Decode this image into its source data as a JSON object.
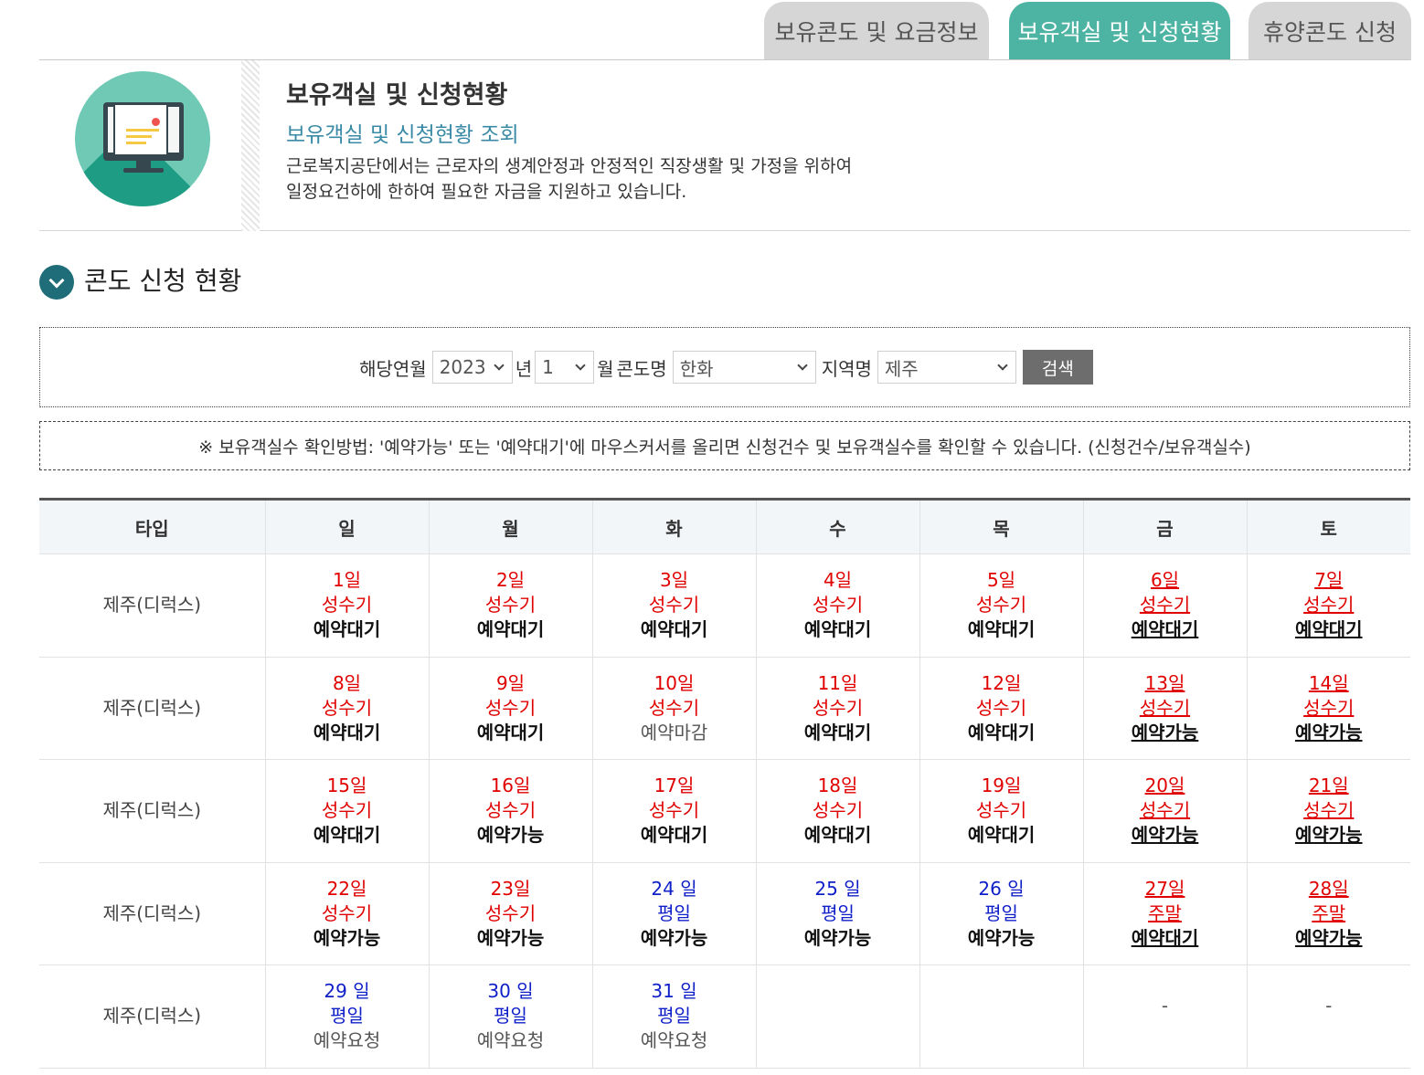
{
  "tabs": [
    {
      "label": "보유콘도 및 요금정보",
      "active": false
    },
    {
      "label": "보유객실 및 신청현황",
      "active": true
    },
    {
      "label": "휴양콘도 신청",
      "active": false
    }
  ],
  "intro": {
    "icon": "computer-document-icon",
    "title": "보유객실 및 신청현황",
    "subtitle": "보유객실 및 신청현황 조회",
    "desc_line1": "근로복지공단에서는 근로자의 생계안정과 안정적인 직장생활 및 가정을 위하여",
    "desc_line2": "일정요건하에 한하여 필요한 자금을 지원하고 있습니다."
  },
  "section": {
    "title": "콘도 신청 현황",
    "icon": "chevron-down-icon"
  },
  "search": {
    "year_label": "해당연월",
    "year": "2023",
    "year_unit": "년",
    "month": "1",
    "month_unit": "월",
    "condo_label": "콘도명",
    "condo": "한화",
    "region_label": "지역명",
    "region": "제주",
    "button": "검색"
  },
  "notice": "※ 보유객실수 확인방법: '예약가능' 또는 '예약대기'에 마우스커서를 올리면 신청건수 및 보유객실수를 확인할 수 있습니다. (신청건수/보유객실수)",
  "colors": {
    "tab_active": "#4db3a3",
    "red": "#e00000",
    "blue": "#1020c8",
    "section_icon": "#1f6d78"
  },
  "calendar": {
    "headers": [
      "타입",
      "일",
      "월",
      "화",
      "수",
      "목",
      "금",
      "토"
    ],
    "rows": [
      {
        "type": "제주(디럭스)",
        "cells": [
          {
            "day": "1일",
            "season": "성수기",
            "status": "예약대기"
          },
          {
            "day": "2일",
            "season": "성수기",
            "status": "예약대기"
          },
          {
            "day": "3일",
            "season": "성수기",
            "status": "예약대기"
          },
          {
            "day": "4일",
            "season": "성수기",
            "status": "예약대기"
          },
          {
            "day": "5일",
            "season": "성수기",
            "status": "예약대기"
          },
          {
            "day": "6일",
            "season": "성수기",
            "status": "예약대기"
          },
          {
            "day": "7일",
            "season": "성수기",
            "status": "예약대기"
          }
        ]
      },
      {
        "type": "제주(디럭스)",
        "cells": [
          {
            "day": "8일",
            "season": "성수기",
            "status": "예약대기"
          },
          {
            "day": "9일",
            "season": "성수기",
            "status": "예약대기"
          },
          {
            "day": "10일",
            "season": "성수기",
            "status": "예약마감"
          },
          {
            "day": "11일",
            "season": "성수기",
            "status": "예약대기"
          },
          {
            "day": "12일",
            "season": "성수기",
            "status": "예약대기"
          },
          {
            "day": "13일",
            "season": "성수기",
            "status": "예약가능"
          },
          {
            "day": "14일",
            "season": "성수기",
            "status": "예약가능"
          }
        ]
      },
      {
        "type": "제주(디럭스)",
        "cells": [
          {
            "day": "15일",
            "season": "성수기",
            "status": "예약대기"
          },
          {
            "day": "16일",
            "season": "성수기",
            "status": "예약가능"
          },
          {
            "day": "17일",
            "season": "성수기",
            "status": "예약대기"
          },
          {
            "day": "18일",
            "season": "성수기",
            "status": "예약대기"
          },
          {
            "day": "19일",
            "season": "성수기",
            "status": "예약대기"
          },
          {
            "day": "20일",
            "season": "성수기",
            "status": "예약가능"
          },
          {
            "day": "21일",
            "season": "성수기",
            "status": "예약가능"
          }
        ]
      },
      {
        "type": "제주(디럭스)",
        "cells": [
          {
            "day": "22일",
            "season": "성수기",
            "status": "예약가능"
          },
          {
            "day": "23일",
            "season": "성수기",
            "status": "예약가능"
          },
          {
            "day": "24 일",
            "season": "평일",
            "status": "예약가능"
          },
          {
            "day": "25 일",
            "season": "평일",
            "status": "예약가능"
          },
          {
            "day": "26 일",
            "season": "평일",
            "status": "예약가능"
          },
          {
            "day": "27일",
            "season": "주말",
            "status": "예약대기"
          },
          {
            "day": "28일",
            "season": "주말",
            "status": "예약가능"
          }
        ]
      },
      {
        "type": "제주(디럭스)",
        "cells": [
          {
            "day": "29 일",
            "season": "평일",
            "status": "예약요청"
          },
          {
            "day": "30 일",
            "season": "평일",
            "status": "예약요청"
          },
          {
            "day": "31 일",
            "season": "평일",
            "status": "예약요청"
          },
          {
            "empty": ""
          },
          {
            "empty": ""
          },
          {
            "dash": "-"
          },
          {
            "dash": "-"
          }
        ]
      }
    ]
  }
}
